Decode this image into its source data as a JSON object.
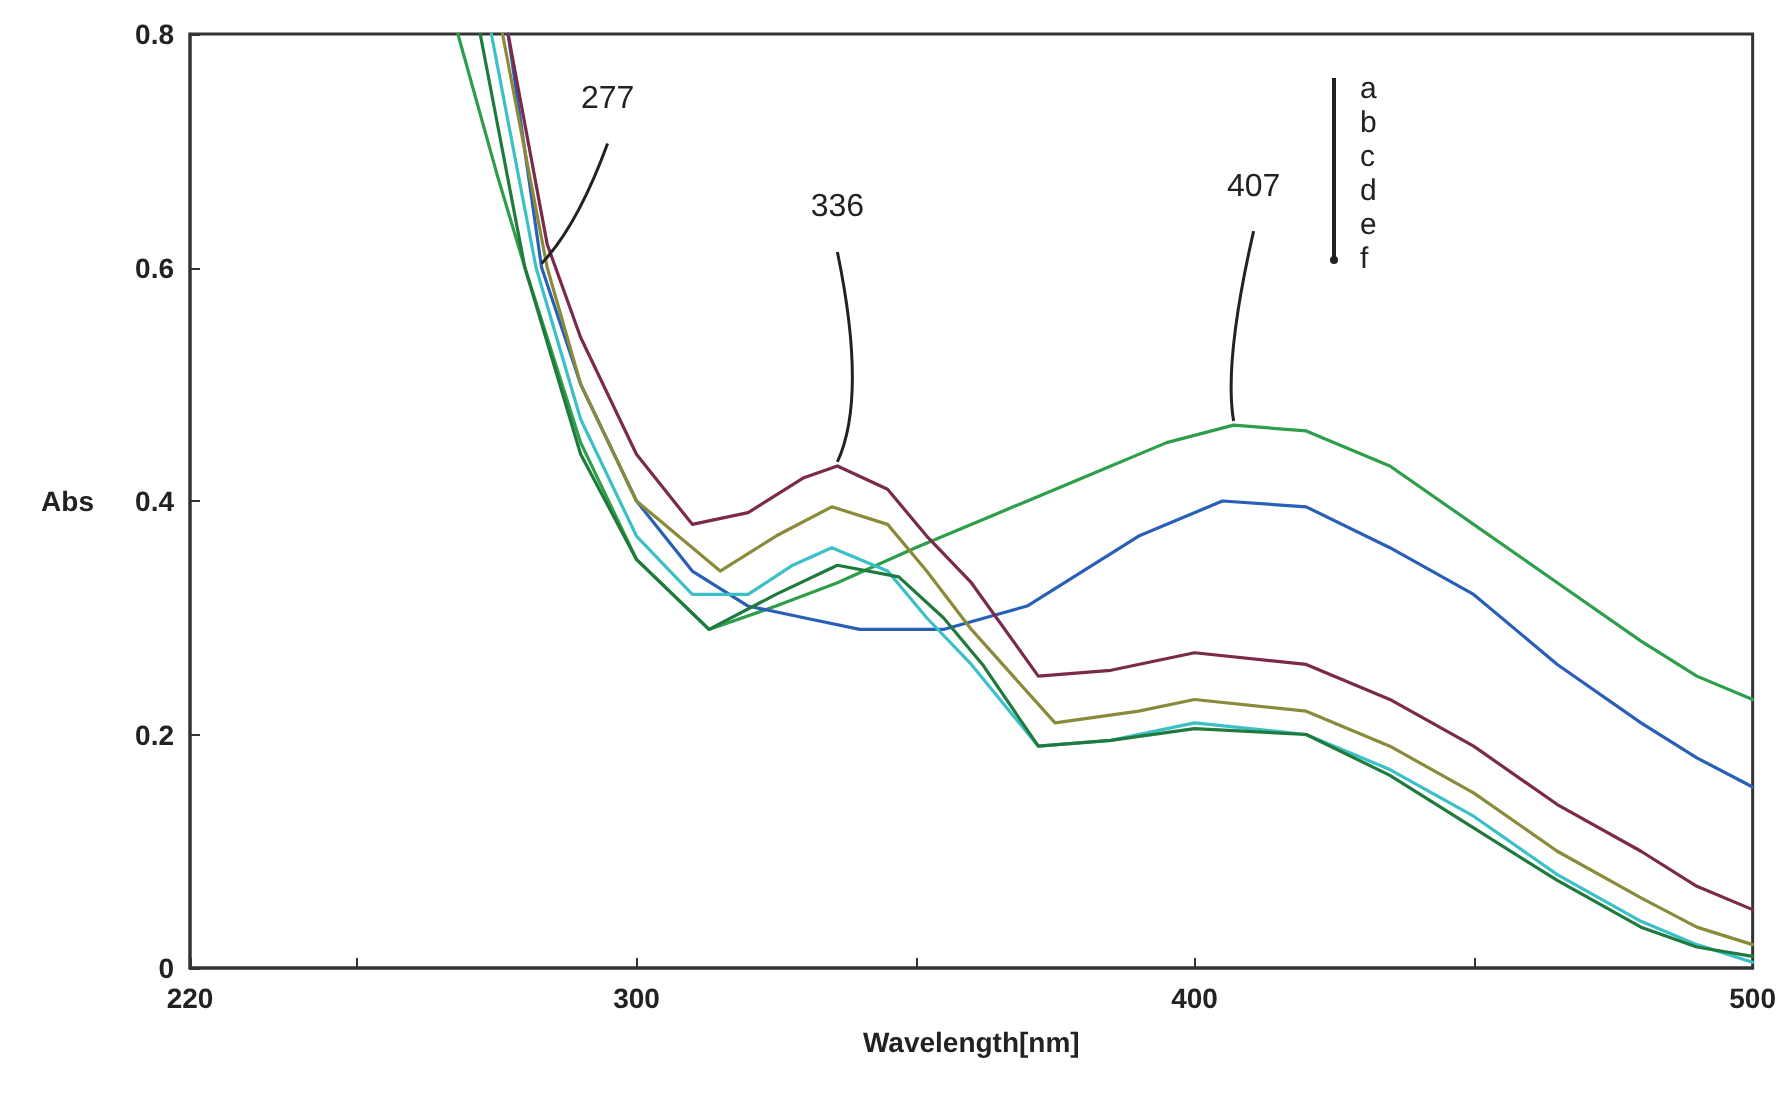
{
  "chart_data": {
    "type": "line",
    "xlabel": "Wavelength[nm]",
    "ylabel": "Abs",
    "grid": false,
    "marker": "none",
    "line_style": "solid",
    "xlim": [
      220,
      500
    ],
    "xticks": [
      220,
      {
        "value": 250,
        "label": null
      },
      300,
      {
        "value": 350,
        "label": null
      },
      400,
      {
        "value": 450,
        "label": null
      },
      500
    ],
    "ylim": [
      0,
      0.8
    ],
    "yticks": [
      0,
      0.2,
      0.4,
      0.6,
      0.8
    ],
    "annotations": [
      {
        "text": "277",
        "x": 283,
        "y": 0.6
      },
      {
        "text": "336",
        "x": 336,
        "y": 0.43
      },
      {
        "text": "407",
        "x": 407,
        "y": 0.465
      },
      "a",
      "b",
      "c",
      "d",
      "e",
      "f"
    ],
    "series": [
      {
        "color": "#2e9e4a",
        "x": [
          268,
          275,
          280,
          290,
          300,
          313,
          325,
          336,
          350,
          365,
          380,
          395,
          407,
          420,
          435,
          450,
          465,
          480,
          490,
          500
        ],
        "values": [
          0.8,
          0.68,
          0.6,
          0.45,
          0.35,
          0.29,
          0.31,
          0.33,
          0.36,
          0.39,
          0.42,
          0.45,
          0.465,
          0.46,
          0.43,
          0.38,
          0.33,
          0.28,
          0.25,
          0.23
        ]
      },
      {
        "color": "#2a5fb8",
        "x": [
          277,
          283,
          290,
          300,
          310,
          320,
          330,
          340,
          355,
          370,
          380,
          390,
          405,
          420,
          435,
          450,
          465,
          480,
          490,
          500
        ],
        "values": [
          0.8,
          0.6,
          0.5,
          0.4,
          0.34,
          0.31,
          0.3,
          0.29,
          0.29,
          0.31,
          0.34,
          0.37,
          0.4,
          0.395,
          0.36,
          0.32,
          0.26,
          0.21,
          0.18,
          0.155
        ]
      },
      {
        "color": "#7a2a4a",
        "x": [
          277,
          284,
          290,
          300,
          310,
          320,
          330,
          336,
          345,
          352,
          360,
          372,
          385,
          400,
          420,
          435,
          450,
          465,
          480,
          490,
          500
        ],
        "values": [
          0.8,
          0.62,
          0.54,
          0.44,
          0.38,
          0.39,
          0.42,
          0.43,
          0.41,
          0.37,
          0.33,
          0.25,
          0.255,
          0.27,
          0.26,
          0.23,
          0.19,
          0.14,
          0.1,
          0.07,
          0.05
        ]
      },
      {
        "color": "#8a8a3a",
        "x": [
          276,
          284,
          290,
          300,
          315,
          325,
          335,
          345,
          352,
          360,
          375,
          390,
          400,
          420,
          435,
          450,
          465,
          480,
          490,
          500
        ],
        "values": [
          0.8,
          0.6,
          0.5,
          0.4,
          0.34,
          0.37,
          0.395,
          0.38,
          0.34,
          0.29,
          0.21,
          0.22,
          0.23,
          0.22,
          0.19,
          0.15,
          0.1,
          0.06,
          0.035,
          0.02
        ]
      },
      {
        "color": "#3cc0c8",
        "x": [
          274,
          282,
          290,
          300,
          310,
          320,
          328,
          335,
          345,
          352,
          360,
          372,
          385,
          400,
          420,
          435,
          450,
          465,
          480,
          490,
          500
        ],
        "values": [
          0.8,
          0.6,
          0.47,
          0.37,
          0.32,
          0.32,
          0.345,
          0.36,
          0.34,
          0.3,
          0.26,
          0.19,
          0.195,
          0.21,
          0.2,
          0.17,
          0.13,
          0.08,
          0.04,
          0.02,
          0.005
        ]
      },
      {
        "color": "#1f7a3c",
        "x": [
          272,
          280,
          290,
          300,
          313,
          325,
          336,
          347,
          355,
          362,
          372,
          385,
          400,
          420,
          435,
          450,
          465,
          480,
          490,
          500
        ],
        "values": [
          0.8,
          0.6,
          0.44,
          0.35,
          0.29,
          0.32,
          0.345,
          0.335,
          0.3,
          0.26,
          0.19,
          0.195,
          0.205,
          0.2,
          0.165,
          0.12,
          0.075,
          0.035,
          0.018,
          0.01
        ]
      }
    ]
  }
}
